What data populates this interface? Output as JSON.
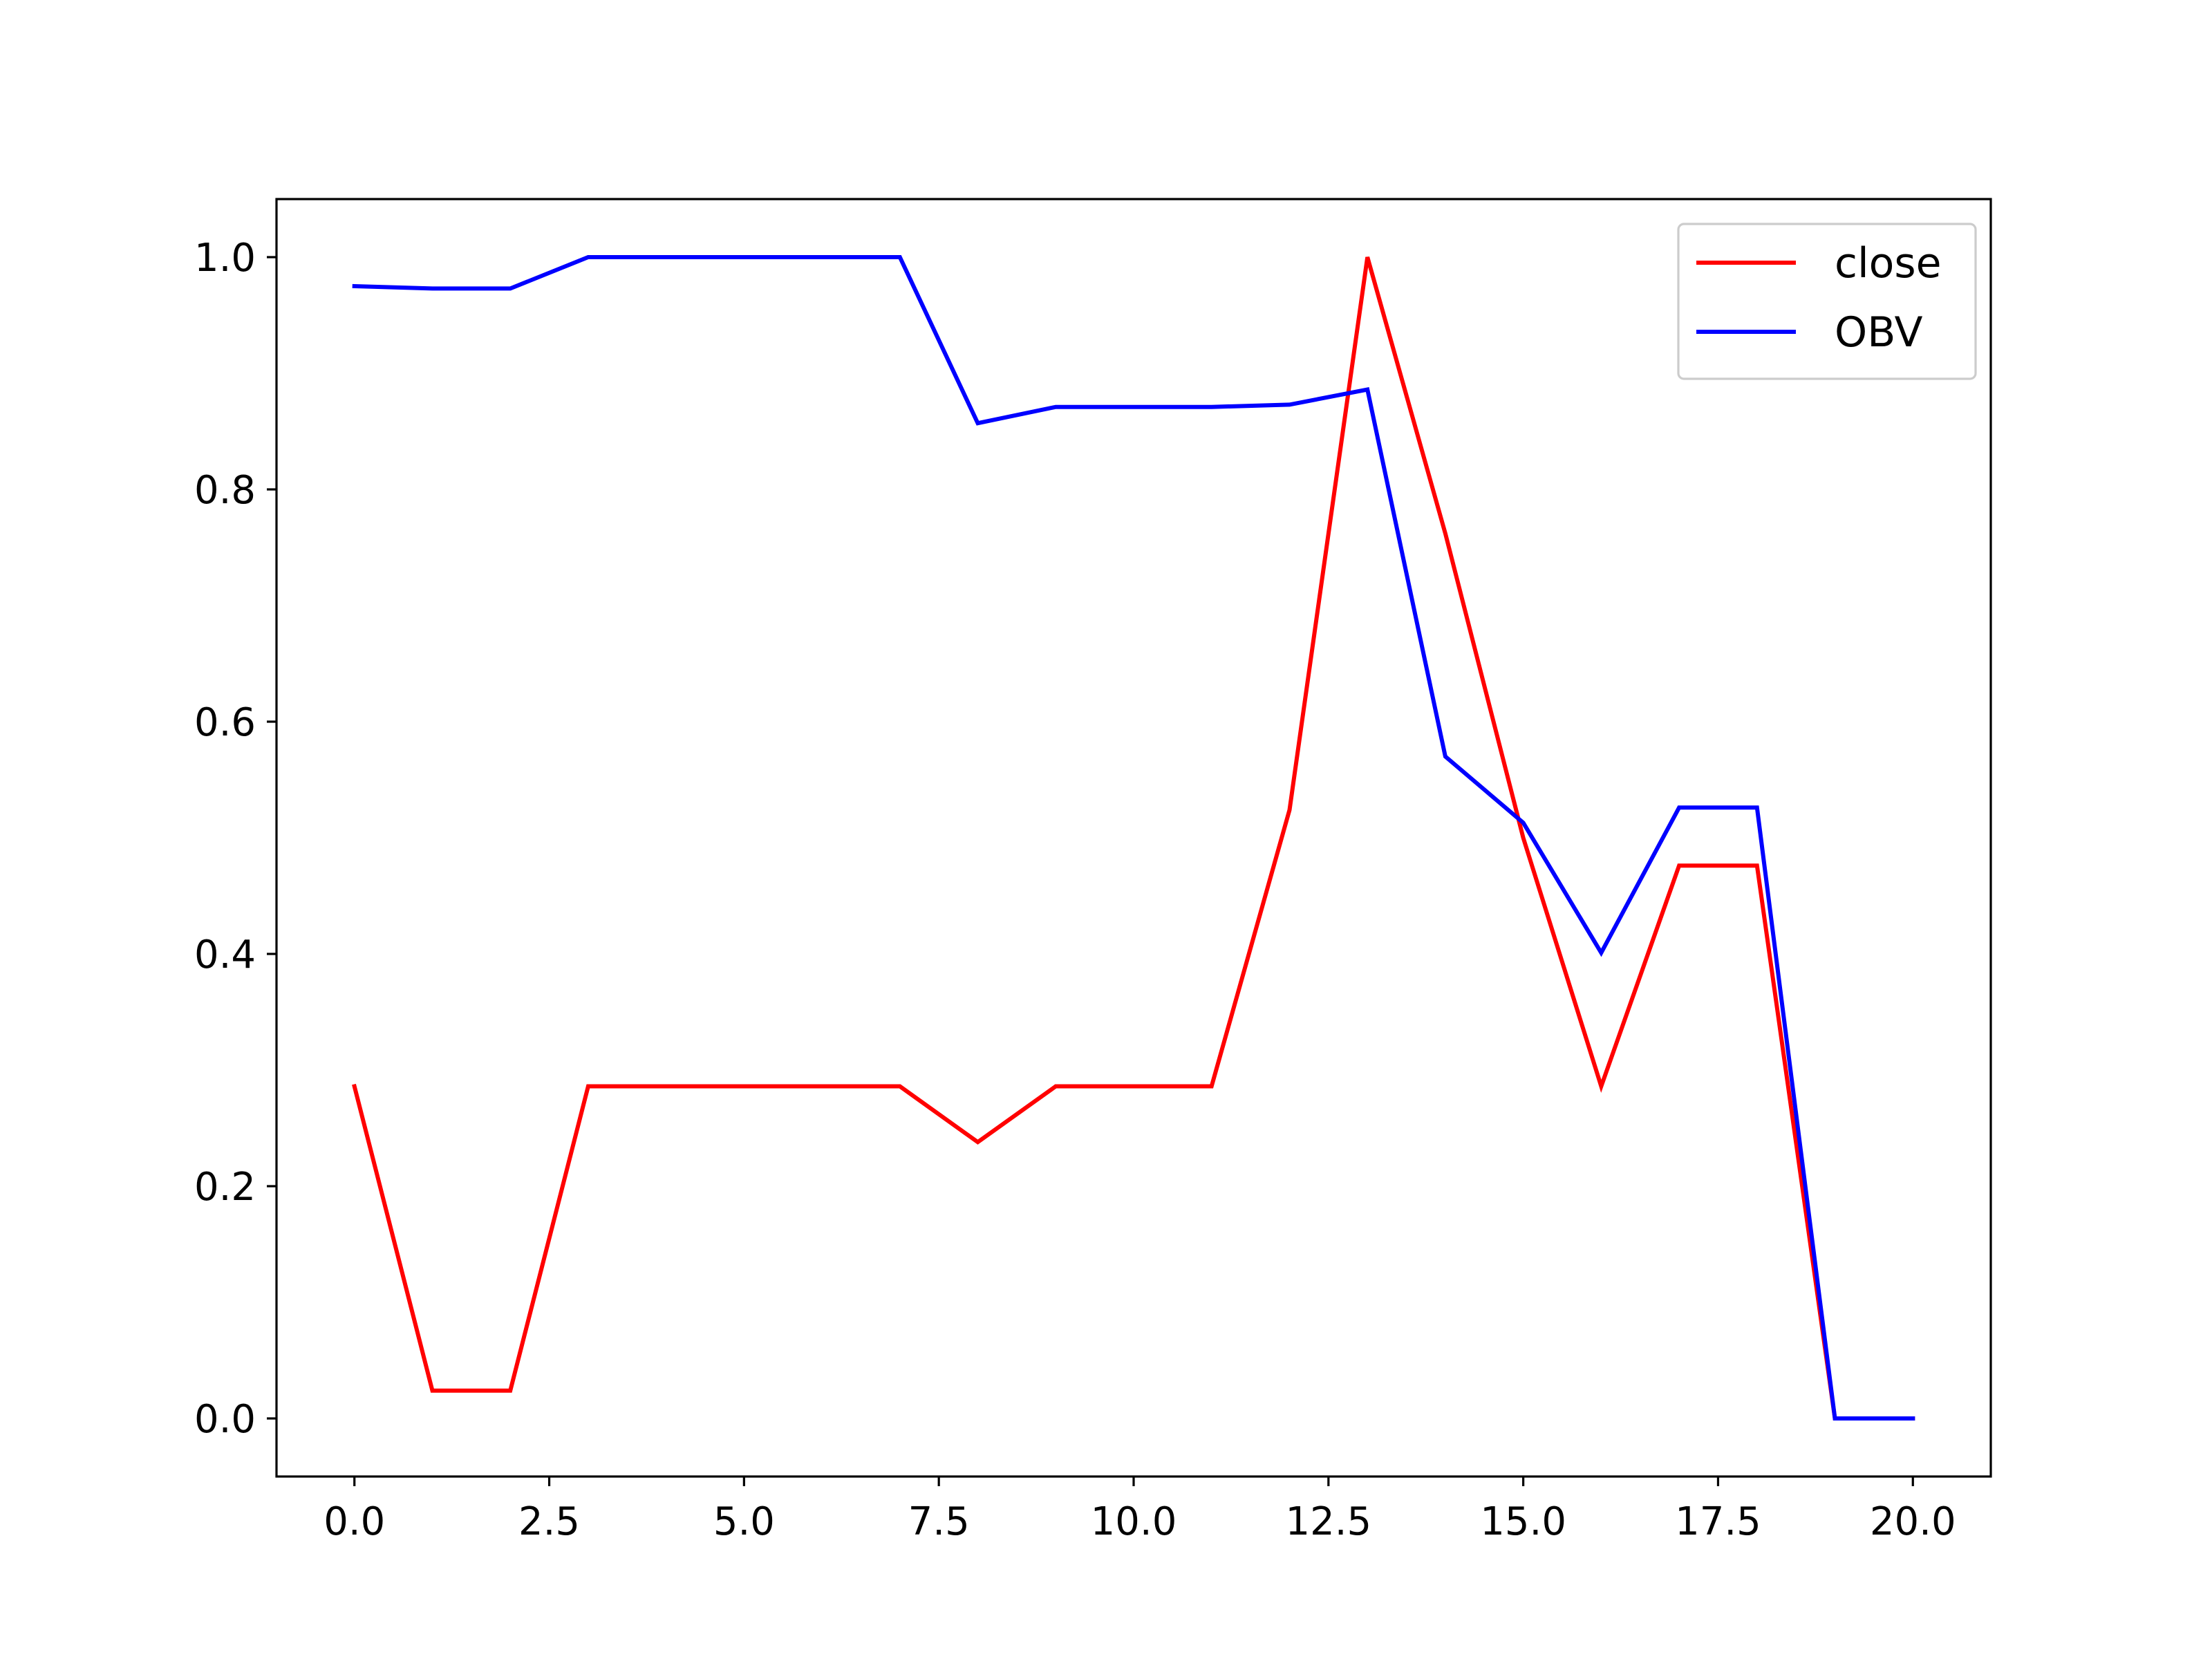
{
  "chart_data": {
    "type": "line",
    "title": "",
    "xlabel": "",
    "ylabel": "",
    "xlim": [
      -1.0,
      21.0
    ],
    "ylim": [
      -0.05,
      1.05
    ],
    "x_ticks": [
      0.0,
      2.5,
      5.0,
      7.5,
      10.0,
      12.5,
      15.0,
      17.5,
      20.0
    ],
    "x_tick_labels": [
      "0.0",
      "2.5",
      "5.0",
      "7.5",
      "10.0",
      "12.5",
      "15.0",
      "17.5",
      "20.0"
    ],
    "y_ticks": [
      0.0,
      0.2,
      0.4,
      0.6,
      0.8,
      1.0
    ],
    "y_tick_labels": [
      "0.0",
      "0.2",
      "0.4",
      "0.6",
      "0.8",
      "1.0"
    ],
    "grid": false,
    "legend_position": "upper right",
    "x": [
      0,
      1,
      2,
      3,
      4,
      5,
      6,
      7,
      8,
      9,
      10,
      11,
      12,
      13,
      14,
      15,
      16,
      17,
      18,
      19,
      20
    ],
    "series": [
      {
        "name": "close",
        "color": "#ff0000",
        "values": [
          0.286,
          0.024,
          0.024,
          0.286,
          0.286,
          0.286,
          0.286,
          0.286,
          0.238,
          0.286,
          0.286,
          0.286,
          0.524,
          1.0,
          0.762,
          0.5,
          0.286,
          0.476,
          0.476,
          0.0,
          0.0
        ]
      },
      {
        "name": "OBV",
        "color": "#0000ff",
        "values": [
          0.975,
          0.973,
          0.973,
          1.0,
          1.0,
          1.0,
          1.0,
          1.0,
          0.857,
          0.871,
          0.871,
          0.871,
          0.873,
          0.886,
          0.57,
          0.513,
          0.401,
          0.526,
          0.526,
          0.0,
          0.0
        ]
      }
    ]
  }
}
